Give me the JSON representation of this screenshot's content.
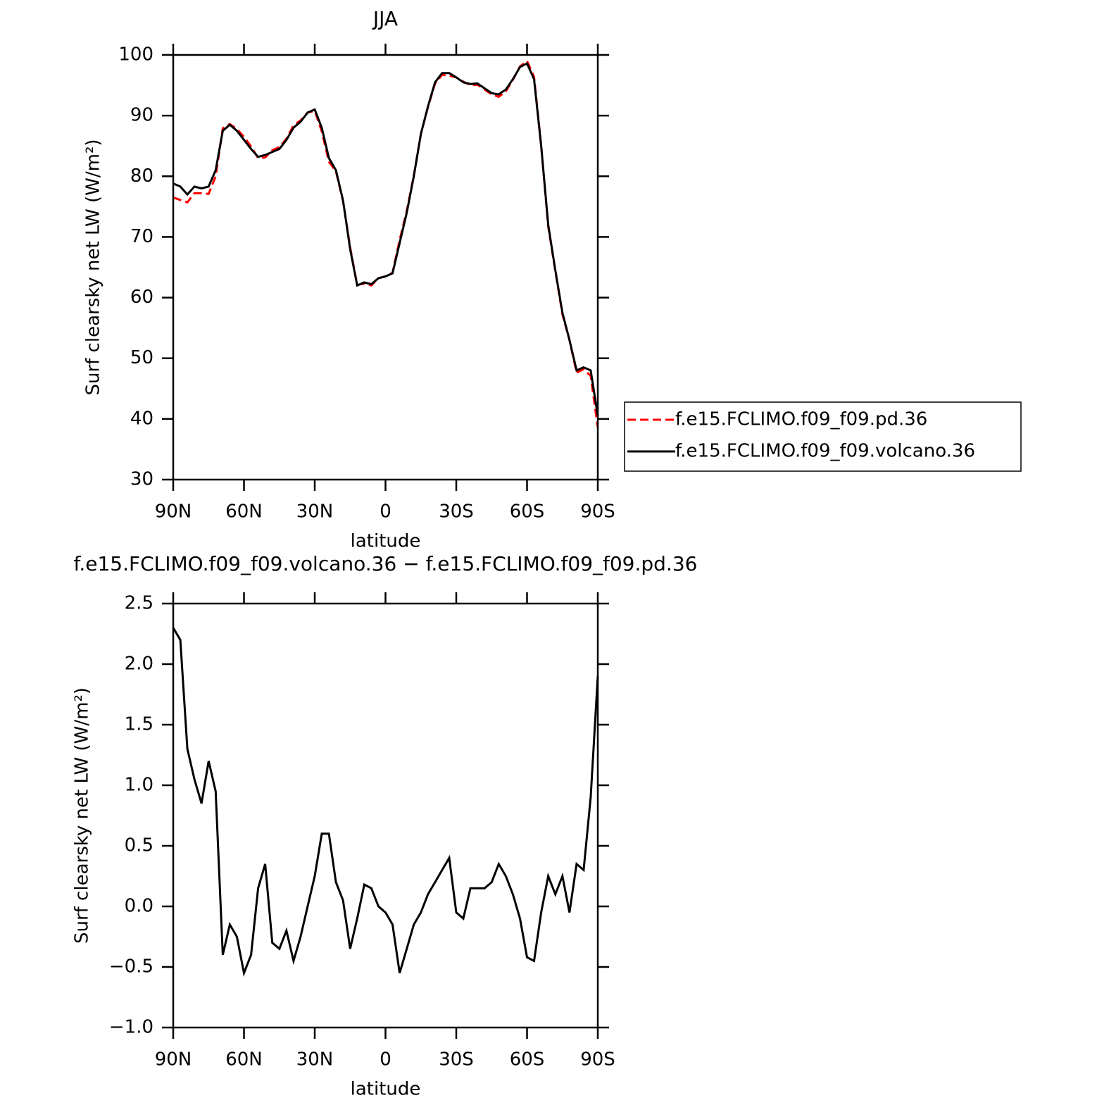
{
  "chart_data": [
    {
      "type": "line",
      "title": "JJA",
      "xlabel": "latitude",
      "ylabel": "Surf clearsky net LW (W/m²)",
      "x": [
        90,
        87,
        84,
        81,
        78,
        75,
        72,
        69,
        66,
        63,
        60,
        57,
        54,
        51,
        48,
        45,
        42,
        39,
        36,
        33,
        30,
        27,
        24,
        21,
        18,
        15,
        12,
        9,
        6,
        3,
        0,
        -3,
        -6,
        -9,
        -12,
        -15,
        -18,
        -21,
        -24,
        -27,
        -30,
        -33,
        -36,
        -39,
        -42,
        -45,
        -48,
        -51,
        -54,
        -57,
        -60,
        -63,
        -66,
        -69,
        -72,
        -75,
        -78,
        -81,
        -84,
        -87,
        -90
      ],
      "series": [
        {
          "name": "f.e15.FCLIMO.f09_f09.pd.36",
          "color": "#ff0000",
          "style": "dashed",
          "values": [
            76.5,
            76.1,
            75.7,
            77.2,
            77.2,
            77.1,
            80.0,
            87.9,
            88.6,
            87.8,
            86.5,
            84.9,
            83.0,
            83.1,
            84.3,
            84.8,
            86.2,
            88.4,
            89.2,
            90.5,
            90.8,
            87.4,
            82.4,
            80.8,
            75.9,
            68.3,
            62.1,
            62.3,
            62.0,
            63.2,
            63.5,
            64.1,
            69.5,
            74.3,
            80.1,
            87.0,
            91.4,
            95.3,
            96.7,
            96.6,
            96.3,
            95.6,
            95.0,
            95.1,
            94.3,
            93.5,
            93.1,
            94.0,
            95.9,
            98.1,
            99.0,
            96.4,
            85.0,
            71.7,
            64.4,
            57.2,
            53.0,
            47.6,
            48.2,
            47.1,
            38.6
          ]
        },
        {
          "name": "f.e15.FCLIMO.f09_f09.volcano.36",
          "color": "#000000",
          "style": "solid",
          "values": [
            78.8,
            78.3,
            77.0,
            78.3,
            78.0,
            78.3,
            81.0,
            87.5,
            88.5,
            87.5,
            86.0,
            84.5,
            83.2,
            83.5,
            84.0,
            84.5,
            86.0,
            88.0,
            89.0,
            90.5,
            91.0,
            88.0,
            83.0,
            81.0,
            76.0,
            68.0,
            62.0,
            62.5,
            62.2,
            63.2,
            63.5,
            64.0,
            69.0,
            74.0,
            80.0,
            87.0,
            91.5,
            95.5,
            97.0,
            97.0,
            96.3,
            95.5,
            95.2,
            95.3,
            94.5,
            93.7,
            93.5,
            94.3,
            96.0,
            98.0,
            98.6,
            96.0,
            85.0,
            72.0,
            64.5,
            57.5,
            53.0,
            48.0,
            48.5,
            48.0,
            40.5
          ]
        }
      ],
      "xlim": [
        90,
        -90
      ],
      "xticks": [
        {
          "value": 90,
          "label": "90N"
        },
        {
          "value": 60,
          "label": "60N"
        },
        {
          "value": 30,
          "label": "30N"
        },
        0,
        {
          "value": -30,
          "label": "30S"
        },
        {
          "value": -60,
          "label": "60S"
        },
        {
          "value": -90,
          "label": "90S"
        }
      ],
      "ylim": [
        30,
        100
      ],
      "yticks": [
        30,
        40,
        50,
        60,
        70,
        80,
        90,
        100
      ],
      "legend": "right"
    },
    {
      "type": "line",
      "title": "f.e15.FCLIMO.f09_f09.volcano.36 − f.e15.FCLIMO.f09_f09.pd.36",
      "xlabel": "latitude",
      "ylabel": "Surf clearsky net LW (W/m²)",
      "x": [
        90,
        87,
        84,
        81,
        78,
        75,
        72,
        69,
        66,
        63,
        60,
        57,
        54,
        51,
        48,
        45,
        42,
        39,
        36,
        33,
        30,
        27,
        24,
        21,
        18,
        15,
        12,
        9,
        6,
        3,
        0,
        -3,
        -6,
        -9,
        -12,
        -15,
        -18,
        -21,
        -24,
        -27,
        -30,
        -33,
        -36,
        -39,
        -42,
        -45,
        -48,
        -51,
        -54,
        -57,
        -60,
        -63,
        -66,
        -69,
        -72,
        -75,
        -78,
        -81,
        -84,
        -87,
        -90
      ],
      "series": [
        {
          "color": "#000000",
          "style": "solid",
          "values": [
            2.3,
            2.2,
            1.3,
            1.05,
            0.85,
            1.2,
            0.95,
            -0.4,
            -0.15,
            -0.25,
            -0.55,
            -0.4,
            0.15,
            0.35,
            -0.3,
            -0.35,
            -0.2,
            -0.45,
            -0.25,
            0.0,
            0.25,
            0.6,
            0.6,
            0.2,
            0.05,
            -0.35,
            -0.1,
            0.18,
            0.15,
            0.0,
            -0.05,
            -0.15,
            -0.55,
            -0.35,
            -0.15,
            -0.05,
            0.1,
            0.2,
            0.3,
            0.4,
            -0.05,
            -0.1,
            0.15,
            0.15,
            0.15,
            0.2,
            0.35,
            0.25,
            0.1,
            -0.1,
            -0.42,
            -0.45,
            -0.05,
            0.25,
            0.1,
            0.25,
            -0.05,
            0.35,
            0.3,
            0.9,
            1.9
          ]
        }
      ],
      "xlim": [
        90,
        -90
      ],
      "xticks": [
        {
          "value": 90,
          "label": "90N"
        },
        {
          "value": 60,
          "label": "60N"
        },
        {
          "value": 30,
          "label": "30N"
        },
        0,
        {
          "value": -30,
          "label": "30S"
        },
        {
          "value": -60,
          "label": "60S"
        },
        {
          "value": -90,
          "label": "90S"
        }
      ],
      "ylim": [
        -1,
        2.5
      ],
      "yticks": [
        {
          "value": -1,
          "label": "−1.0"
        },
        {
          "value": -0.5,
          "label": "−0.5"
        },
        {
          "value": 0,
          "label": "0.0"
        },
        0.5,
        {
          "value": 1,
          "label": "1.0"
        },
        1.5,
        {
          "value": 2,
          "label": "2.0"
        },
        2.5
      ]
    }
  ]
}
